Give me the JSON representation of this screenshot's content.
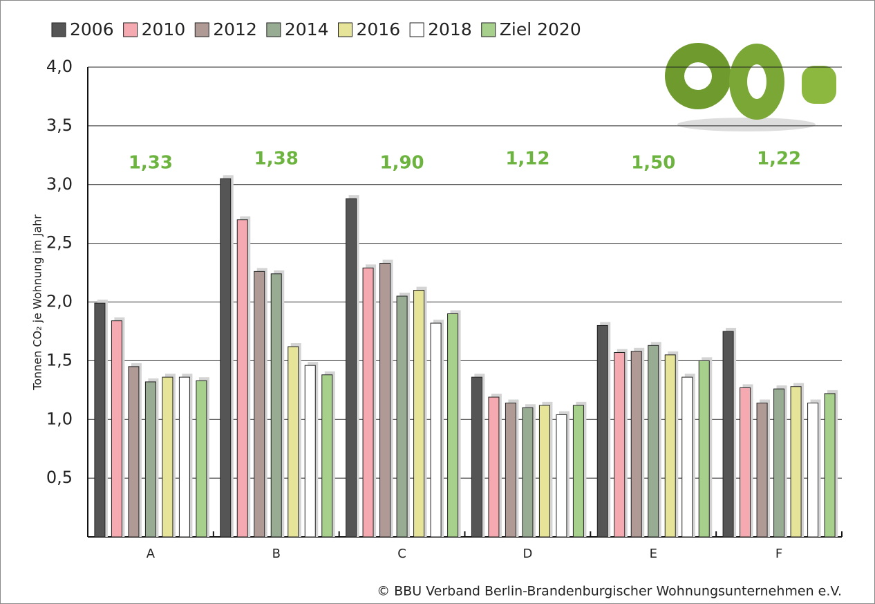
{
  "chart_data": {
    "type": "bar",
    "y_label": "Tonnen CO₂ je Wohnung im Jahr",
    "source": "© BBU Verband Berlin-Brandenburgischer Wohnungsunternehmen e.V.",
    "categories": [
      "A",
      "B",
      "C",
      "D",
      "E",
      "F"
    ],
    "series": [
      {
        "name": "2006",
        "color": "#555555",
        "values": [
          1.99,
          3.05,
          2.88,
          1.36,
          1.8,
          1.75
        ]
      },
      {
        "name": "2010",
        "color": "#f4aab0",
        "values": [
          1.84,
          2.7,
          2.29,
          1.19,
          1.57,
          1.27
        ]
      },
      {
        "name": "2012",
        "color": "#b09a96",
        "values": [
          1.45,
          2.26,
          2.33,
          1.14,
          1.58,
          1.14
        ]
      },
      {
        "name": "2014",
        "color": "#98ac94",
        "values": [
          1.32,
          2.24,
          2.05,
          1.1,
          1.63,
          1.26
        ]
      },
      {
        "name": "2016",
        "color": "#e5e498",
        "values": [
          1.36,
          1.62,
          2.1,
          1.12,
          1.55,
          1.28
        ]
      },
      {
        "name": "2018",
        "color": "#ffffff",
        "values": [
          1.36,
          1.46,
          1.82,
          1.04,
          1.36,
          1.14
        ]
      },
      {
        "name": "Ziel 2020",
        "color": "#a8d08d",
        "values": [
          1.33,
          1.38,
          1.9,
          1.12,
          1.5,
          1.22
        ],
        "value_labels": [
          "1,33",
          "1,38",
          "1,90",
          "1,12",
          "1,50",
          "1,22"
        ],
        "value_label_color": "#6db33f"
      }
    ],
    "ylim": [
      0,
      4
    ],
    "yticks": [
      {
        "value": 0.5,
        "label": "0,5"
      },
      {
        "value": 1,
        "label": "1,0"
      },
      {
        "value": 1.5,
        "label": "1,5"
      },
      {
        "value": 2,
        "label": "2,0"
      },
      {
        "value": 2.5,
        "label": "2,5"
      },
      {
        "value": 3,
        "label": "3,0"
      },
      {
        "value": 3.5,
        "label": "3,5"
      },
      {
        "value": 4,
        "label": "4,0"
      }
    ],
    "grid": true
  }
}
